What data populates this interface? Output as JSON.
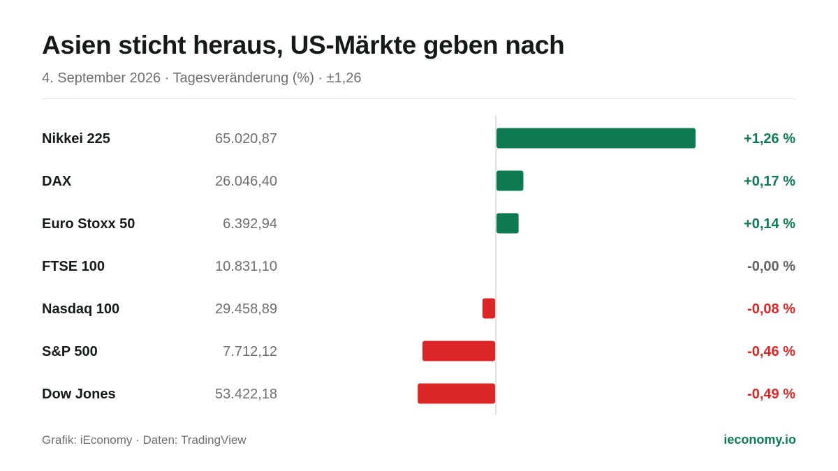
{
  "chart_data": {
    "type": "bar",
    "orientation": "horizontal",
    "title": "Asien sticht heraus, US-Märkte geben nach",
    "subtitle": "4. September 2026 · Tagesveränderung (%) · ±1,26",
    "categories": [
      "Nikkei 225",
      "DAX",
      "Euro Stoxx 50",
      "FTSE 100",
      "Nasdaq 100",
      "S&P 500",
      "Dow Jones"
    ],
    "index_levels": [
      "65.020,87",
      "26.046,40",
      "6.392,94",
      "10.831,10",
      "29.458,89",
      "7.712,12",
      "53.422,18"
    ],
    "values": [
      1.26,
      0.17,
      0.14,
      -0.0,
      -0.08,
      -0.46,
      -0.49
    ],
    "value_labels": [
      "+1,26 %",
      "+0,17 %",
      "+0,14 %",
      "-0,00 %",
      "-0,08 %",
      "-0,46 %",
      "-0,49 %"
    ],
    "xlim": [
      -1.26,
      1.26
    ],
    "grid": false,
    "colors": {
      "positive": "#0e7a50",
      "negative": "#dc2626",
      "neutral": "#5f6361",
      "zero_line": "#d6d6d6"
    }
  },
  "footer": {
    "source": "Grafik: iEconomy · Daten: TradingView",
    "brand": "ieconomy.io"
  }
}
